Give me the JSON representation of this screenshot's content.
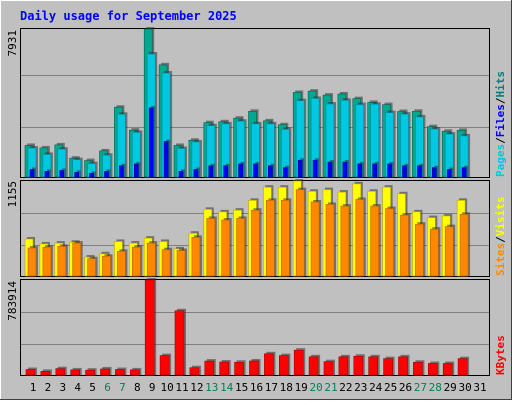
{
  "colors": {
    "background": "#c0c0c0",
    "panel": "#c0c0c0",
    "grid": "#808080",
    "title": "#0000ff",
    "pages": "#00c8e0",
    "pages_dark": "#0088a8",
    "files": "#0000ff",
    "hits": "#008080",
    "hits_dark": "#006050",
    "hits_light": "#00a890",
    "visits": "#ffff00",
    "visits_dark": "#c0a000",
    "sites": "#ff8800",
    "sites_dark": "#b86000",
    "kbytes": "#ff0000",
    "kbytes_dark": "#a00000",
    "weekend_label": "#00805a"
  },
  "chart_data": {
    "type": "bar",
    "title": "Daily usage for September 2025",
    "categories": [
      "1",
      "2",
      "3",
      "4",
      "5",
      "6",
      "7",
      "8",
      "9",
      "10",
      "11",
      "12",
      "13",
      "14",
      "15",
      "16",
      "17",
      "18",
      "19",
      "20",
      "21",
      "22",
      "23",
      "24",
      "25",
      "26",
      "27",
      "28",
      "29",
      "30",
      "31"
    ],
    "weekend_days": [
      "6",
      "7",
      "13",
      "14",
      "20",
      "21",
      "27",
      "28"
    ],
    "panels": [
      {
        "id": "hits",
        "max_label": "7931",
        "ymax": 7931,
        "legend": [
          {
            "text": "Pages",
            "color": "#00c8e0"
          },
          {
            "text": "Files",
            "color": "#0000ff"
          },
          {
            "text": "Hits",
            "color": "#008080"
          }
        ],
        "series": [
          {
            "name": "Hits",
            "values": [
              1690,
              1560,
              1720,
              1010,
              880,
              1400,
              3740,
              2510,
              7931,
              6010,
              1690,
              1970,
              2910,
              2960,
              3150,
              3520,
              3010,
              2800,
              4530,
              4600,
              4390,
              4450,
              4200,
              4000,
              3880,
              3510,
              3520,
              2700,
              2450,
              2500,
              null
            ]
          },
          {
            "name": "Files",
            "values": [
              400,
              300,
              350,
              250,
              200,
              300,
              600,
              700,
              3700,
              1900,
              300,
              400,
              600,
              600,
              700,
              700,
              600,
              500,
              900,
              900,
              800,
              800,
              700,
              700,
              700,
              600,
              600,
              500,
              400,
              500,
              null
            ]
          },
          {
            "name": "Pages",
            "values": [
              1550,
              1210,
              1490,
              930,
              720,
              1170,
              3360,
              2390,
              6590,
              5570,
              1530,
              1880,
              2750,
              2850,
              2990,
              2850,
              2850,
              2550,
              4090,
              4210,
              3910,
              4110,
              3880,
              3900,
              3450,
              3370,
              3220,
              2570,
              2300,
              2200,
              null
            ]
          }
        ]
      },
      {
        "id": "visits",
        "max_label": "1155",
        "ymax": 1155,
        "legend": [
          {
            "text": "Sites",
            "color": "#ff8800"
          },
          {
            "text": "Visits",
            "color": "#ffff00"
          }
        ],
        "series": [
          {
            "name": "Visits",
            "values": [
              450,
              390,
              400,
              410,
              230,
              270,
              420,
              400,
              460,
              420,
              330,
              520,
              810,
              780,
              800,
              920,
              1080,
              1080,
              1155,
              1030,
              1050,
              1020,
              1120,
              1030,
              1080,
              1000,
              780,
              710,
              730,
              920,
              null
            ]
          },
          {
            "name": "Sites",
            "values": [
              340,
              350,
              360,
              400,
              210,
              240,
              300,
              350,
              400,
              320,
              310,
              470,
              700,
              680,
              700,
              800,
              920,
              920,
              1050,
              900,
              870,
              850,
              930,
              850,
              820,
              740,
              630,
              570,
              600,
              750,
              null
            ]
          }
        ]
      },
      {
        "id": "kbytes",
        "max_label": "783914",
        "ymax": 783914,
        "legend": [
          {
            "text": "KBytes",
            "color": "#ff0000"
          }
        ],
        "series": [
          {
            "name": "KBytes",
            "values": [
              45000,
              30000,
              52000,
              42000,
              40000,
              50000,
              45000,
              42000,
              783914,
              160000,
              530000,
              60000,
              115000,
              107000,
              105000,
              116000,
              175000,
              160000,
              205000,
              150000,
              110000,
              150000,
              155000,
              150000,
              135000,
              150000,
              105000,
              95000,
              95000,
              135000,
              null
            ]
          }
        ]
      }
    ]
  }
}
